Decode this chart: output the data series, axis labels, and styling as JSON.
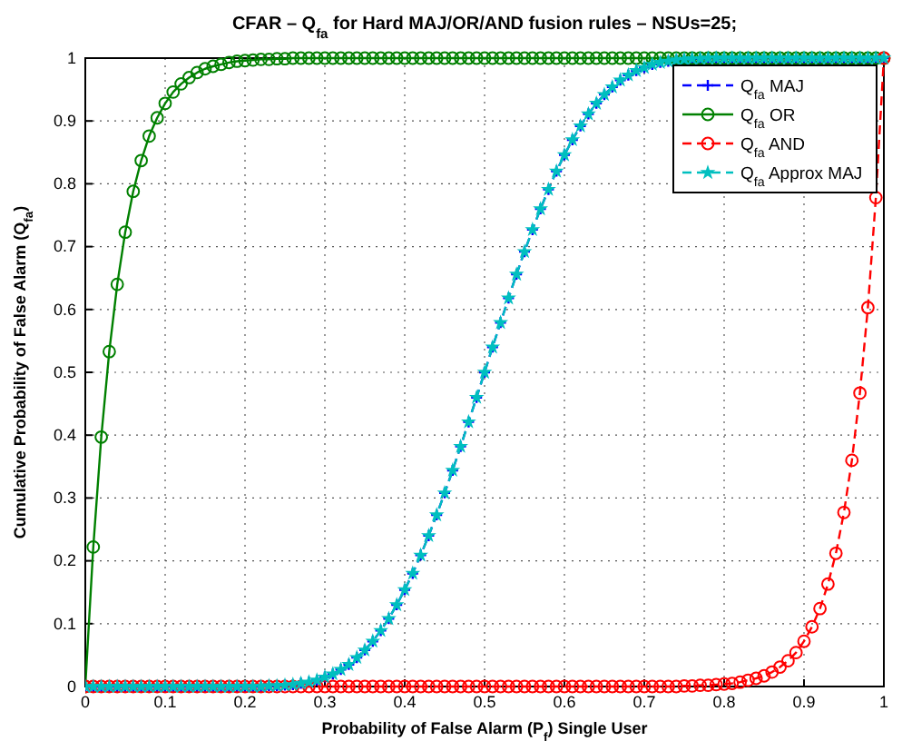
{
  "chart_data": {
    "type": "line",
    "title": "CFAR – Q$_{fa}$ for Hard MAJ/OR/AND fusion rules – NSUs=25;",
    "xlabel": "Probability of False Alarm (P$_{f}$) Single User",
    "ylabel": "Cumulative Probability of False Alarm (Q$_{fa}$)",
    "x": [
      0,
      0.01,
      0.02,
      0.03,
      0.04,
      0.05,
      0.06,
      0.07,
      0.08,
      0.09,
      0.1,
      0.11,
      0.12,
      0.13,
      0.14,
      0.15,
      0.16,
      0.17,
      0.18,
      0.19,
      0.2,
      0.21,
      0.22,
      0.23,
      0.24,
      0.25,
      0.26,
      0.27,
      0.28,
      0.29,
      0.3,
      0.31,
      0.32,
      0.33,
      0.34,
      0.35,
      0.36,
      0.37,
      0.38,
      0.39,
      0.4,
      0.41,
      0.42,
      0.43,
      0.44,
      0.45,
      0.46,
      0.47,
      0.48,
      0.49,
      0.5,
      0.51,
      0.52,
      0.53,
      0.54,
      0.55,
      0.56,
      0.57,
      0.58,
      0.59,
      0.6,
      0.61,
      0.62,
      0.63,
      0.64,
      0.65,
      0.66,
      0.67,
      0.68,
      0.69,
      0.7,
      0.71,
      0.72,
      0.73,
      0.74,
      0.75,
      0.76,
      0.77,
      0.78,
      0.79,
      0.8,
      0.81,
      0.82,
      0.83,
      0.84,
      0.85,
      0.86,
      0.87,
      0.88,
      0.89,
      0.9,
      0.91,
      0.92,
      0.93,
      0.94,
      0.95,
      0.96,
      0.97,
      0.98,
      0.99,
      1
    ],
    "series": [
      {
        "name": "Q$_{fa}$ MAJ",
        "color": "#0000ff",
        "marker": "cross",
        "line_style": "dashed",
        "values": [
          0,
          0,
          0,
          0,
          0,
          0,
          0,
          0,
          0,
          0,
          0,
          0,
          0,
          0,
          0,
          0,
          0,
          0,
          0,
          0,
          0,
          0,
          0,
          0.001,
          0.001,
          0.002,
          0.003,
          0.005,
          0.007,
          0.01,
          0.015,
          0.02,
          0.027,
          0.035,
          0.046,
          0.058,
          0.072,
          0.089,
          0.108,
          0.13,
          0.154,
          0.18,
          0.209,
          0.24,
          0.273,
          0.308,
          0.344,
          0.382,
          0.421,
          0.46,
          0.5,
          0.54,
          0.579,
          0.618,
          0.656,
          0.692,
          0.727,
          0.76,
          0.791,
          0.82,
          0.846,
          0.87,
          0.892,
          0.911,
          0.928,
          0.942,
          0.954,
          0.965,
          0.973,
          0.98,
          0.985,
          0.99,
          0.993,
          0.995,
          0.997,
          0.998,
          0.999,
          0.999,
          1,
          1,
          1,
          1,
          1,
          1,
          1,
          1,
          1,
          1,
          1,
          1,
          1,
          1,
          1,
          1,
          1,
          1,
          1,
          1,
          1,
          1,
          1
        ]
      },
      {
        "name": "Q$_{fa}$ OR",
        "color": "#008000",
        "marker": "circle",
        "line_style": "solid",
        "values": [
          0,
          0.222,
          0.397,
          0.533,
          0.64,
          0.723,
          0.788,
          0.837,
          0.876,
          0.905,
          0.928,
          0.946,
          0.959,
          0.969,
          0.977,
          0.983,
          0.987,
          0.99,
          0.993,
          0.995,
          0.996,
          0.997,
          0.998,
          0.998,
          0.999,
          0.999,
          1,
          1,
          1,
          1,
          1,
          1,
          1,
          1,
          1,
          1,
          1,
          1,
          1,
          1,
          1,
          1,
          1,
          1,
          1,
          1,
          1,
          1,
          1,
          1,
          1,
          1,
          1,
          1,
          1,
          1,
          1,
          1,
          1,
          1,
          1,
          1,
          1,
          1,
          1,
          1,
          1,
          1,
          1,
          1,
          1,
          1,
          1,
          1,
          1,
          1,
          1,
          1,
          1,
          1,
          1,
          1,
          1,
          1,
          1,
          1,
          1,
          1,
          1,
          1,
          1,
          1,
          1,
          1,
          1,
          1,
          1,
          1,
          1,
          1,
          1
        ]
      },
      {
        "name": "Q$_{fa}$ AND",
        "color": "#ff0000",
        "marker": "circle",
        "line_style": "dashed",
        "values": [
          0,
          0,
          0,
          0,
          0,
          0,
          0,
          0,
          0,
          0,
          0,
          0,
          0,
          0,
          0,
          0,
          0,
          0,
          0,
          0,
          0,
          0,
          0,
          0,
          0,
          0,
          0,
          0,
          0,
          0,
          0,
          0,
          0,
          0,
          0,
          0,
          0,
          0,
          0,
          0,
          0,
          0,
          0,
          0,
          0,
          0,
          0,
          0,
          0,
          0,
          0,
          0,
          0,
          0,
          0,
          0,
          0,
          0,
          0,
          0,
          0,
          0,
          0,
          0,
          0,
          0,
          0,
          0,
          0,
          0,
          0,
          0,
          0,
          0,
          0,
          0.001,
          0.001,
          0.002,
          0.002,
          0.003,
          0.004,
          0.005,
          0.007,
          0.01,
          0.013,
          0.017,
          0.023,
          0.031,
          0.041,
          0.054,
          0.072,
          0.095,
          0.124,
          0.163,
          0.212,
          0.277,
          0.36,
          0.467,
          0.603,
          0.778,
          1
        ]
      },
      {
        "name": "Q$_{fa}$ Approx MAJ",
        "color": "#00bfbf",
        "marker": "star",
        "line_style": "dashed",
        "values": [
          0,
          0,
          0,
          0,
          0,
          0,
          0,
          0,
          0,
          0,
          0,
          0,
          0,
          0,
          0,
          0,
          0,
          0,
          0,
          0,
          0,
          0,
          0,
          0.001,
          0.001,
          0.002,
          0.003,
          0.005,
          0.007,
          0.01,
          0.015,
          0.02,
          0.027,
          0.035,
          0.046,
          0.058,
          0.072,
          0.089,
          0.108,
          0.13,
          0.154,
          0.18,
          0.209,
          0.24,
          0.273,
          0.308,
          0.344,
          0.382,
          0.421,
          0.46,
          0.5,
          0.54,
          0.579,
          0.618,
          0.656,
          0.692,
          0.727,
          0.76,
          0.791,
          0.82,
          0.846,
          0.87,
          0.892,
          0.911,
          0.928,
          0.942,
          0.954,
          0.965,
          0.973,
          0.98,
          0.985,
          0.99,
          0.993,
          0.995,
          0.997,
          0.998,
          0.999,
          0.999,
          1,
          1,
          1,
          1,
          1,
          1,
          1,
          1,
          1,
          1,
          1,
          1,
          1,
          1,
          1,
          1,
          1,
          1,
          1,
          1,
          1,
          1,
          1
        ]
      }
    ],
    "xlim": [
      0,
      1
    ],
    "ylim": [
      0,
      1
    ],
    "xticks": [
      0,
      0.1,
      0.2,
      0.3,
      0.4,
      0.5,
      0.6,
      0.7,
      0.8,
      0.9,
      1
    ],
    "yticks": [
      0,
      0.1,
      0.2,
      0.3,
      0.4,
      0.5,
      0.6,
      0.7,
      0.8,
      0.9,
      1
    ],
    "grid": true,
    "legend": "top right"
  }
}
